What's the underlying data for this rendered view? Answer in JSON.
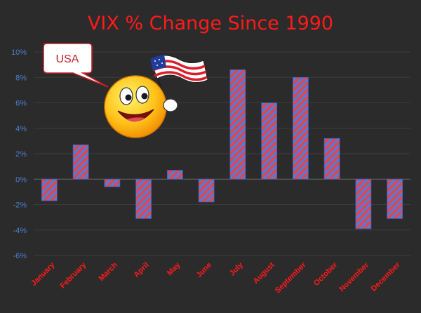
{
  "chart_data": {
    "type": "bar",
    "title": "VIX % Change Since 1990",
    "categories": [
      "January",
      "February",
      "March",
      "April",
      "May",
      "June",
      "July",
      "August",
      "September",
      "October",
      "November",
      "December"
    ],
    "values": [
      -1.7,
      2.7,
      -0.6,
      -3.1,
      0.7,
      -1.8,
      8.6,
      6.0,
      8.0,
      3.2,
      -3.9,
      -3.1
    ],
    "unit": "%",
    "ylim": [
      -6,
      10
    ],
    "yticks": [
      -6,
      -4,
      -2,
      0,
      2,
      4,
      6,
      8,
      10
    ],
    "ytick_labels": [
      "-6%",
      "-4%",
      "-2%",
      "0%",
      "2%",
      "4%",
      "6%",
      "8%",
      "10%"
    ],
    "grid": true,
    "bar_fill": "striped red/blue",
    "colors": {
      "background": "#2b2b2b",
      "title": "#ff1a1a",
      "tick_labels_y": "#4f7fd0",
      "tick_labels_x": "#ff1a1a",
      "bar_stripe_red": "#e0464a",
      "bar_stripe_blue": "#5a78d6"
    }
  },
  "callout": {
    "text": "USA",
    "icon": "smiley-waving-us-flag-icon"
  }
}
